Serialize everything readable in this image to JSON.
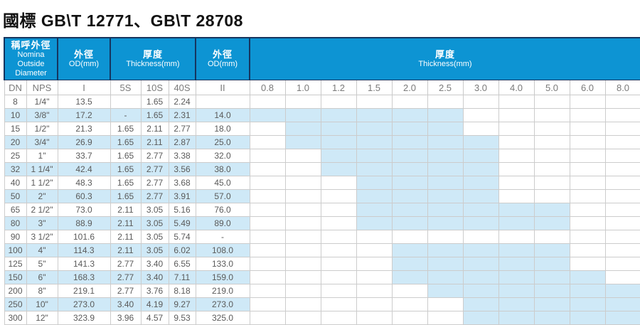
{
  "title": "國標 GB\\T 12771、GB\\T 28708",
  "colors": {
    "header_blue": "#0d94d3",
    "header_border_navy": "#16355f",
    "stripe_light_blue": "#cfe9f7",
    "grid_gray": "#cccccc",
    "text_gray": "#5a5a5a"
  },
  "table": {
    "header_groups": [
      {
        "zh": "稱呼外徑",
        "en": "Nomina",
        "en2": "Outside Diameter"
      },
      {
        "zh": "外徑",
        "en": "OD(mm)"
      },
      {
        "zh": "厚度",
        "en": "Thickness(mm)"
      },
      {
        "zh": "外徑",
        "en": "OD(mm)"
      },
      {
        "zh": "厚度",
        "en": "Thickness(mm)"
      }
    ],
    "subheaders": [
      "DN",
      "NPS",
      "I",
      "5S",
      "10S",
      "40S",
      "II"
    ],
    "thickness_columns": [
      "0.8",
      "1.0",
      "1.2",
      "1.5",
      "2.0",
      "2.5",
      "3.0",
      "4.0",
      "5.0",
      "6.0",
      "8.0"
    ],
    "rows": [
      {
        "dn": "8",
        "nps": "1/4\"",
        "od1": "13.5",
        "s5": "",
        "s10": "1.65",
        "s40": "2.24",
        "od2": "",
        "hl": []
      },
      {
        "dn": "10",
        "nps": "3/8\"",
        "od1": "17.2",
        "s5": "-",
        "s10": "1.65",
        "s40": "2.31",
        "od2": "14.0",
        "hl": [
          0,
          5
        ]
      },
      {
        "dn": "15",
        "nps": "1/2\"",
        "od1": "21.3",
        "s5": "1.65",
        "s10": "2.11",
        "s40": "2.77",
        "od2": "18.0",
        "hl": [
          1,
          5
        ]
      },
      {
        "dn": "20",
        "nps": "3/4\"",
        "od1": "26.9",
        "s5": "1.65",
        "s10": "2.11",
        "s40": "2.87",
        "od2": "25.0",
        "hl": [
          1,
          6
        ]
      },
      {
        "dn": "25",
        "nps": "1\"",
        "od1": "33.7",
        "s5": "1.65",
        "s10": "2.77",
        "s40": "3.38",
        "od2": "32.0",
        "hl": [
          2,
          6
        ]
      },
      {
        "dn": "32",
        "nps": "1 1/4\"",
        "od1": "42.4",
        "s5": "1.65",
        "s10": "2.77",
        "s40": "3.56",
        "od2": "38.0",
        "hl": [
          2,
          6
        ]
      },
      {
        "dn": "40",
        "nps": "1 1/2\"",
        "od1": "48.3",
        "s5": "1.65",
        "s10": "2.77",
        "s40": "3.68",
        "od2": "45.0",
        "hl": [
          3,
          6
        ]
      },
      {
        "dn": "50",
        "nps": "2\"",
        "od1": "60.3",
        "s5": "1.65",
        "s10": "2.77",
        "s40": "3.91",
        "od2": "57.0",
        "hl": [
          3,
          6
        ]
      },
      {
        "dn": "65",
        "nps": "2 1/2\"",
        "od1": "73.0",
        "s5": "2.11",
        "s10": "3.05",
        "s40": "5.16",
        "od2": "76.0",
        "hl": [
          3,
          8
        ]
      },
      {
        "dn": "80",
        "nps": "3\"",
        "od1": "88.9",
        "s5": "2.11",
        "s10": "3.05",
        "s40": "5.49",
        "od2": "89.0",
        "hl": [
          3,
          8
        ]
      },
      {
        "dn": "90",
        "nps": "3 1/2\"",
        "od1": "101.6",
        "s5": "2.11",
        "s10": "3.05",
        "s40": "5.74",
        "od2": "-",
        "hl": []
      },
      {
        "dn": "100",
        "nps": "4\"",
        "od1": "114.3",
        "s5": "2.11",
        "s10": "3.05",
        "s40": "6.02",
        "od2": "108.0",
        "hl": [
          4,
          8
        ]
      },
      {
        "dn": "125",
        "nps": "5\"",
        "od1": "141.3",
        "s5": "2.77",
        "s10": "3.40",
        "s40": "6.55",
        "od2": "133.0",
        "hl": [
          4,
          8
        ]
      },
      {
        "dn": "150",
        "nps": "6\"",
        "od1": "168.3",
        "s5": "2.77",
        "s10": "3.40",
        "s40": "7.11",
        "od2": "159.0",
        "hl": [
          4,
          9
        ]
      },
      {
        "dn": "200",
        "nps": "8\"",
        "od1": "219.1",
        "s5": "2.77",
        "s10": "3.76",
        "s40": "8.18",
        "od2": "219.0",
        "hl": [
          5,
          10
        ]
      },
      {
        "dn": "250",
        "nps": "10\"",
        "od1": "273.0",
        "s5": "3.40",
        "s10": "4.19",
        "s40": "9.27",
        "od2": "273.0",
        "hl": [
          6,
          10
        ]
      },
      {
        "dn": "300",
        "nps": "12\"",
        "od1": "323.9",
        "s5": "3.96",
        "s10": "4.57",
        "s40": "9.53",
        "od2": "325.0",
        "hl": [
          6,
          10
        ]
      }
    ]
  }
}
